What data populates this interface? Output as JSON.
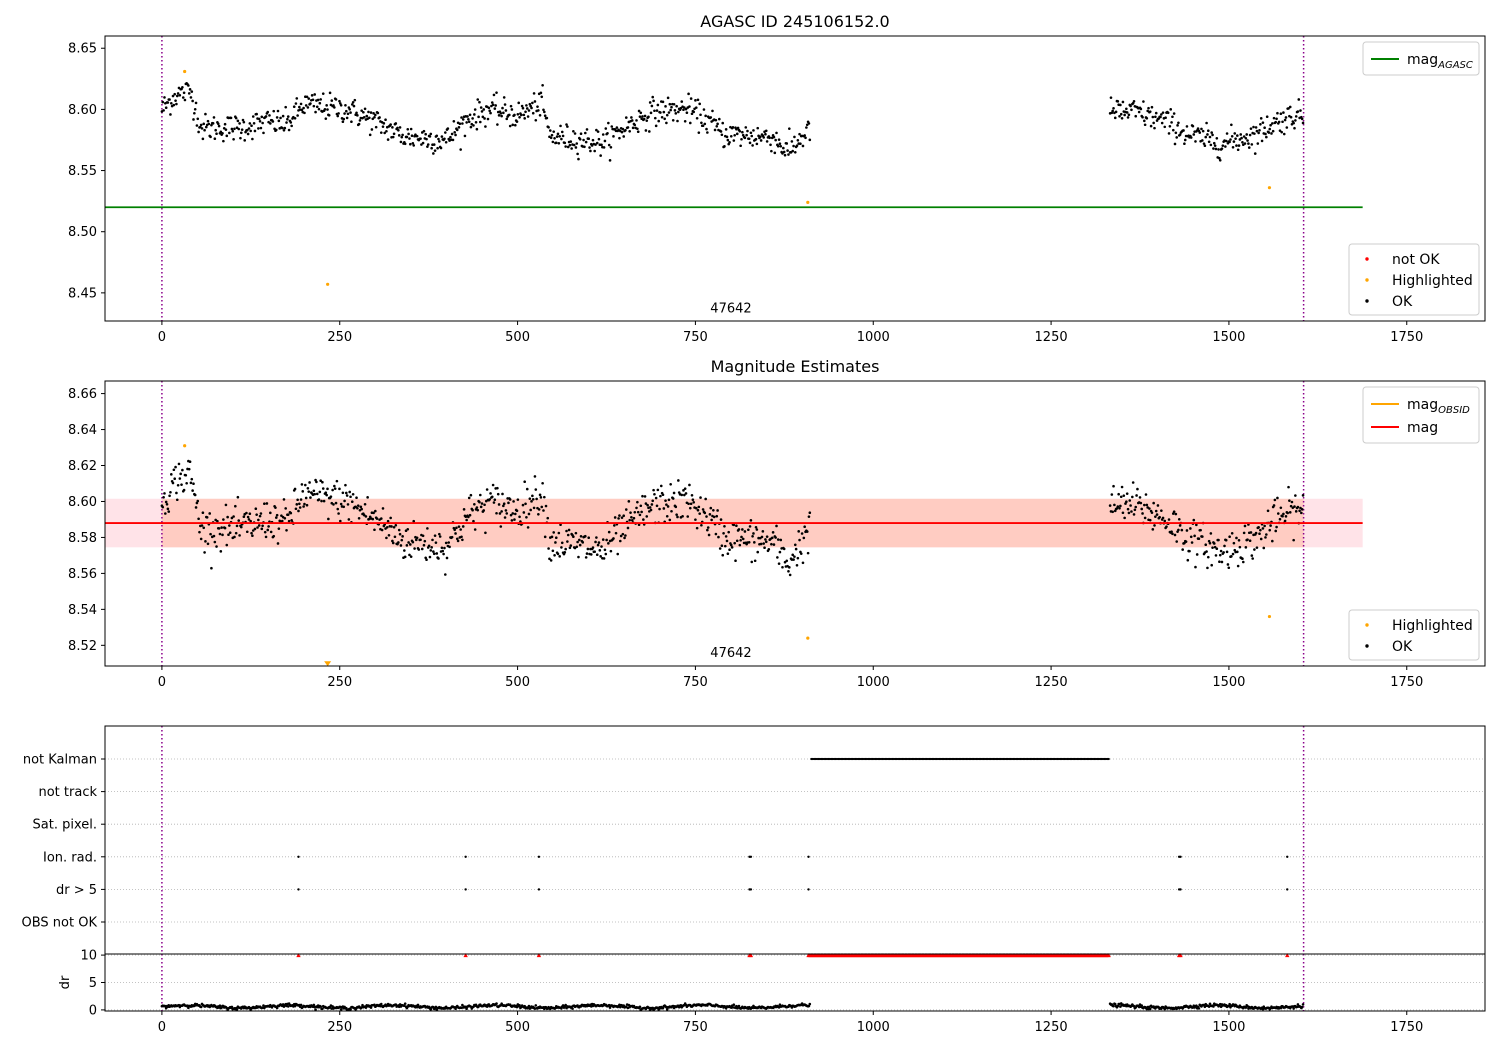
{
  "figure": {
    "width": 1500,
    "height": 1050
  },
  "chart_data": [
    {
      "id": "agasc",
      "type": "scatter",
      "title": "AGASC ID 245106152.0",
      "xlim": [
        -80,
        1860
      ],
      "ylim": [
        8.427,
        8.66
      ],
      "xticks": [
        0,
        250,
        500,
        750,
        1000,
        1250,
        1500,
        1750
      ],
      "yticks": [
        8.45,
        8.5,
        8.55,
        8.6,
        8.65
      ],
      "ytick_labels": [
        "8.45",
        "8.50",
        "8.55",
        "8.60",
        "8.65"
      ],
      "annotation": {
        "text": "47642",
        "x": 800,
        "y": 8.434
      },
      "vlines": [
        0,
        1605
      ],
      "vline_color": "#8b008b",
      "hlines": [
        {
          "y": 8.52,
          "x": [
            -80,
            1688
          ],
          "color": "#008000",
          "name": "mag_AGASC"
        }
      ],
      "legend_lines": [
        {
          "label_main": "mag",
          "label_sub": "AGASC",
          "color": "#008000"
        }
      ],
      "legend_points": [
        {
          "label": "not OK",
          "color": "#ff0000"
        },
        {
          "label": "Highlighted",
          "color": "#ffa500"
        },
        {
          "label": "OK",
          "color": "#000000"
        }
      ],
      "series": [
        {
          "name": "OK",
          "color": "#000000",
          "segments": [
            {
              "x_start": 0,
              "x_end": 912,
              "anchors": [
                [
                  0,
                  8.6
                ],
                [
                  20,
                  8.612
                ],
                [
                  40,
                  8.615
                ],
                [
                  55,
                  8.585
                ],
                [
                  110,
                  8.585
                ],
                [
                  150,
                  8.59
                ],
                [
                  175,
                  8.588
                ],
                [
                  200,
                  8.604
                ],
                [
                  260,
                  8.6
                ],
                [
                  300,
                  8.59
                ],
                [
                  340,
                  8.578
                ],
                [
                  400,
                  8.575
                ],
                [
                  430,
                  8.592
                ],
                [
                  460,
                  8.6
                ],
                [
                  500,
                  8.595
                ],
                [
                  535,
                  8.605
                ],
                [
                  545,
                  8.578
                ],
                [
                  620,
                  8.573
                ],
                [
                  650,
                  8.585
                ],
                [
                  690,
                  8.598
                ],
                [
                  740,
                  8.6
                ],
                [
                  770,
                  8.59
                ],
                [
                  790,
                  8.58
                ],
                [
                  860,
                  8.577
                ],
                [
                  880,
                  8.565
                ],
                [
                  912,
                  8.585
                ]
              ]
            },
            {
              "x_start": 1333,
              "x_end": 1605,
              "anchors": [
                [
                  1333,
                  8.598
                ],
                [
                  1370,
                  8.598
                ],
                [
                  1420,
                  8.588
                ],
                [
                  1440,
                  8.58
                ],
                [
                  1490,
                  8.572
                ],
                [
                  1540,
                  8.58
                ],
                [
                  1560,
                  8.588
                ],
                [
                  1590,
                  8.595
                ],
                [
                  1605,
                  8.595
                ]
              ]
            }
          ]
        },
        {
          "name": "Highlighted",
          "color": "#ffa500",
          "points": [
            [
              32,
              8.631
            ],
            [
              233,
              8.457
            ],
            [
              908,
              8.524
            ],
            [
              1557,
              8.536
            ]
          ]
        }
      ]
    },
    {
      "id": "estimates",
      "type": "scatter",
      "title": "Magnitude Estimates",
      "xlim": [
        -80,
        1860
      ],
      "ylim": [
        8.5085,
        8.667
      ],
      "xticks": [
        0,
        250,
        500,
        750,
        1000,
        1250,
        1500,
        1750
      ],
      "yticks": [
        8.52,
        8.54,
        8.56,
        8.58,
        8.6,
        8.62,
        8.64,
        8.66
      ],
      "ytick_labels": [
        "8.52",
        "8.54",
        "8.56",
        "8.58",
        "8.60",
        "8.62",
        "8.64",
        "8.66"
      ],
      "annotation": {
        "text": "47642",
        "x": 800,
        "y": 8.5135
      },
      "vlines": [
        0,
        1605
      ],
      "vline_color": "#8b008b",
      "bands": [
        {
          "x": [
            -80,
            1688
          ],
          "y": [
            8.5745,
            8.6015
          ],
          "color": "#ffc0cb",
          "opacity": 0.45
        },
        {
          "x": [
            0,
            1605
          ],
          "y": [
            8.5745,
            8.6015
          ],
          "color": "#ffa07a",
          "opacity": 0.35
        }
      ],
      "hlines": [
        {
          "y": 8.588,
          "x": [
            -80,
            1688
          ],
          "color": "#ff0000",
          "name": "mag"
        }
      ],
      "legend_lines": [
        {
          "label_main": "mag",
          "label_sub": "OBSID",
          "color": "#ffa500"
        },
        {
          "label_main": "mag",
          "label_sub": "",
          "color": "#ff0000"
        }
      ],
      "legend_points": [
        {
          "label": "Highlighted",
          "color": "#ffa500"
        },
        {
          "label": "OK",
          "color": "#000000"
        }
      ],
      "series": [
        {
          "name": "OK",
          "color": "#000000",
          "segments": [
            {
              "x_start": 0,
              "x_end": 912,
              "anchors": [
                [
                  0,
                  8.6
                ],
                [
                  20,
                  8.612
                ],
                [
                  40,
                  8.615
                ],
                [
                  55,
                  8.585
                ],
                [
                  110,
                  8.585
                ],
                [
                  150,
                  8.59
                ],
                [
                  175,
                  8.588
                ],
                [
                  200,
                  8.604
                ],
                [
                  260,
                  8.6
                ],
                [
                  300,
                  8.59
                ],
                [
                  340,
                  8.578
                ],
                [
                  400,
                  8.575
                ],
                [
                  430,
                  8.592
                ],
                [
                  460,
                  8.6
                ],
                [
                  500,
                  8.595
                ],
                [
                  535,
                  8.605
                ],
                [
                  545,
                  8.578
                ],
                [
                  620,
                  8.573
                ],
                [
                  650,
                  8.585
                ],
                [
                  690,
                  8.598
                ],
                [
                  740,
                  8.6
                ],
                [
                  770,
                  8.59
                ],
                [
                  790,
                  8.58
                ],
                [
                  860,
                  8.577
                ],
                [
                  880,
                  8.565
                ],
                [
                  912,
                  8.585
                ]
              ]
            },
            {
              "x_start": 1333,
              "x_end": 1605,
              "anchors": [
                [
                  1333,
                  8.598
                ],
                [
                  1370,
                  8.598
                ],
                [
                  1420,
                  8.588
                ],
                [
                  1440,
                  8.58
                ],
                [
                  1490,
                  8.572
                ],
                [
                  1540,
                  8.58
                ],
                [
                  1560,
                  8.588
                ],
                [
                  1590,
                  8.595
                ],
                [
                  1605,
                  8.595
                ]
              ]
            }
          ]
        },
        {
          "name": "Highlighted",
          "color": "#ffa500",
          "points": [
            [
              32,
              8.631
            ],
            [
              908,
              8.524
            ],
            [
              1557,
              8.536
            ]
          ],
          "arrow_points": [
            [
              233,
              8.5095
            ]
          ]
        }
      ]
    },
    {
      "id": "flags",
      "type": "scatter",
      "xlim": [
        -80,
        1860
      ],
      "xticks": [
        0,
        250,
        500,
        750,
        1000,
        1250,
        1500,
        1750
      ],
      "vlines": [
        0,
        1605
      ],
      "vline_color": "#8b008b",
      "rows": [
        "not Kalman",
        "not track",
        "Sat. pixel.",
        "Ion. rad.",
        "dr > 5",
        "OBS not OK"
      ],
      "row_points": {
        "not Kalman": {
          "ranges": [
            [
              913,
              1331
            ]
          ]
        },
        "Ion. rad.": {
          "points": [
            192,
            427,
            530,
            826,
            828,
            909,
            1430,
            1432,
            1582
          ]
        },
        "dr > 5": {
          "points": [
            192,
            427,
            530,
            826,
            828,
            909,
            1430,
            1432,
            1582
          ]
        }
      }
    },
    {
      "id": "dr",
      "type": "scatter",
      "ylabel": "dr",
      "xlim": [
        -80,
        1860
      ],
      "ylim": [
        -0.2,
        10.2
      ],
      "xticks": [
        0,
        250,
        500,
        750,
        1000,
        1250,
        1500,
        1750
      ],
      "xtick_labels": [
        "0",
        "250",
        "500",
        "750",
        "1000",
        "1250",
        "1500",
        "1750"
      ],
      "yticks": [
        0,
        5,
        10
      ],
      "ytick_labels": [
        "0",
        "5",
        "10"
      ],
      "vlines": [
        0,
        1605
      ],
      "vline_color": "#8b008b",
      "series": [
        {
          "name": "dr",
          "color": "#000000",
          "segments": [
            [
              0,
              912
            ],
            [
              1333,
              1605
            ]
          ],
          "level": 0.6
        },
        {
          "name": "dr > 5",
          "color": "#ff0000",
          "capped_at": 10,
          "points": [
            192,
            427,
            530,
            826,
            828,
            1430,
            1432,
            1582
          ],
          "ranges": [
            [
              909,
              1331
            ]
          ]
        }
      ]
    }
  ]
}
